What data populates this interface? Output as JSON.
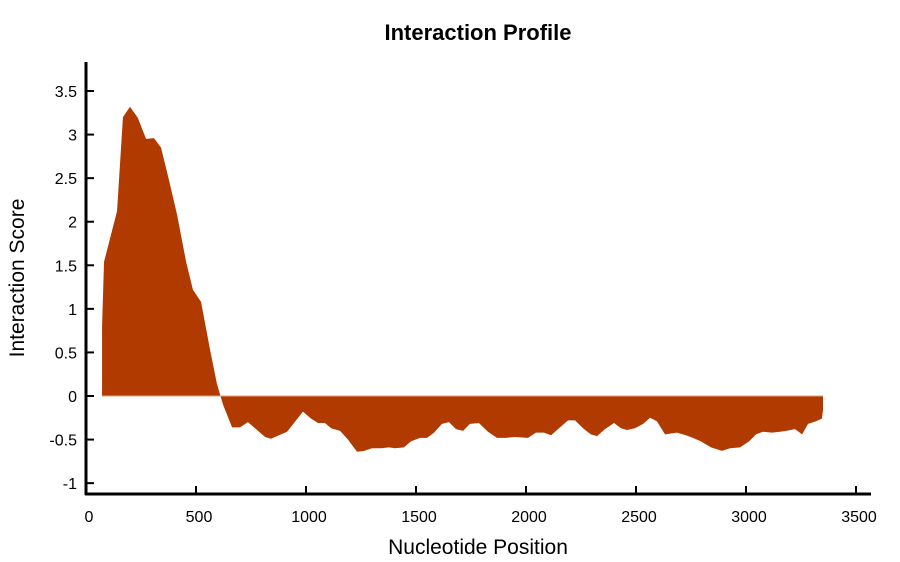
{
  "chart_data": {
    "type": "area",
    "title": "Interaction Profile",
    "xlabel": "Nucleotide Position",
    "ylabel": "Interaction Score",
    "xlim": [
      0,
      3500
    ],
    "ylim": [
      -1.1,
      3.8
    ],
    "xticks": [
      0,
      500,
      1000,
      1500,
      2000,
      2500,
      3000,
      3500
    ],
    "yticks": [
      -1,
      -0.5,
      0,
      0.5,
      1,
      1.5,
      2,
      2.5,
      3,
      3.5
    ],
    "grid": false,
    "color": "#b03a00",
    "series": [
      {
        "x": [
          73,
          82,
          141,
          168,
          200,
          236,
          273,
          309,
          341,
          377,
          414,
          455,
          486,
          523,
          564,
          595,
          623,
          664,
          700,
          736,
          782,
          814,
          841,
          877,
          914,
          986,
          1023,
          1055,
          1086,
          1114,
          1155,
          1191,
          1232,
          1264,
          1300,
          1341,
          1377,
          1405,
          1445,
          1477,
          1518,
          1550,
          1582,
          1618,
          1650,
          1682,
          1714,
          1745,
          1786,
          1827,
          1868,
          1909,
          1950,
          2009,
          2045,
          2082,
          2114,
          2150,
          2191,
          2223,
          2264,
          2295,
          2323,
          2359,
          2400,
          2432,
          2459,
          2495,
          2532,
          2564,
          2595,
          2632,
          2686,
          2727,
          2759,
          2795,
          2841,
          2891,
          2927,
          2973,
          3014,
          3045,
          3077,
          3118,
          3155,
          3182,
          3223,
          3255,
          3282,
          3318,
          3345,
          3350
        ],
        "y": [
          0.8,
          1.54,
          2.12,
          3.2,
          3.32,
          3.19,
          2.95,
          2.96,
          2.85,
          2.48,
          2.08,
          1.54,
          1.22,
          1.08,
          0.53,
          0.14,
          -0.1,
          -0.36,
          -0.36,
          -0.3,
          -0.4,
          -0.47,
          -0.49,
          -0.45,
          -0.41,
          -0.18,
          -0.26,
          -0.31,
          -0.31,
          -0.37,
          -0.4,
          -0.5,
          -0.64,
          -0.63,
          -0.6,
          -0.6,
          -0.59,
          -0.6,
          -0.59,
          -0.52,
          -0.48,
          -0.48,
          -0.42,
          -0.32,
          -0.3,
          -0.38,
          -0.4,
          -0.32,
          -0.31,
          -0.41,
          -0.48,
          -0.48,
          -0.47,
          -0.48,
          -0.42,
          -0.42,
          -0.45,
          -0.37,
          -0.28,
          -0.28,
          -0.38,
          -0.44,
          -0.46,
          -0.38,
          -0.31,
          -0.37,
          -0.39,
          -0.37,
          -0.32,
          -0.25,
          -0.29,
          -0.44,
          -0.42,
          -0.45,
          -0.48,
          -0.52,
          -0.59,
          -0.63,
          -0.6,
          -0.59,
          -0.52,
          -0.44,
          -0.41,
          -0.42,
          -0.41,
          -0.4,
          -0.38,
          -0.44,
          -0.32,
          -0.29,
          -0.26,
          -0.16
        ]
      }
    ]
  }
}
